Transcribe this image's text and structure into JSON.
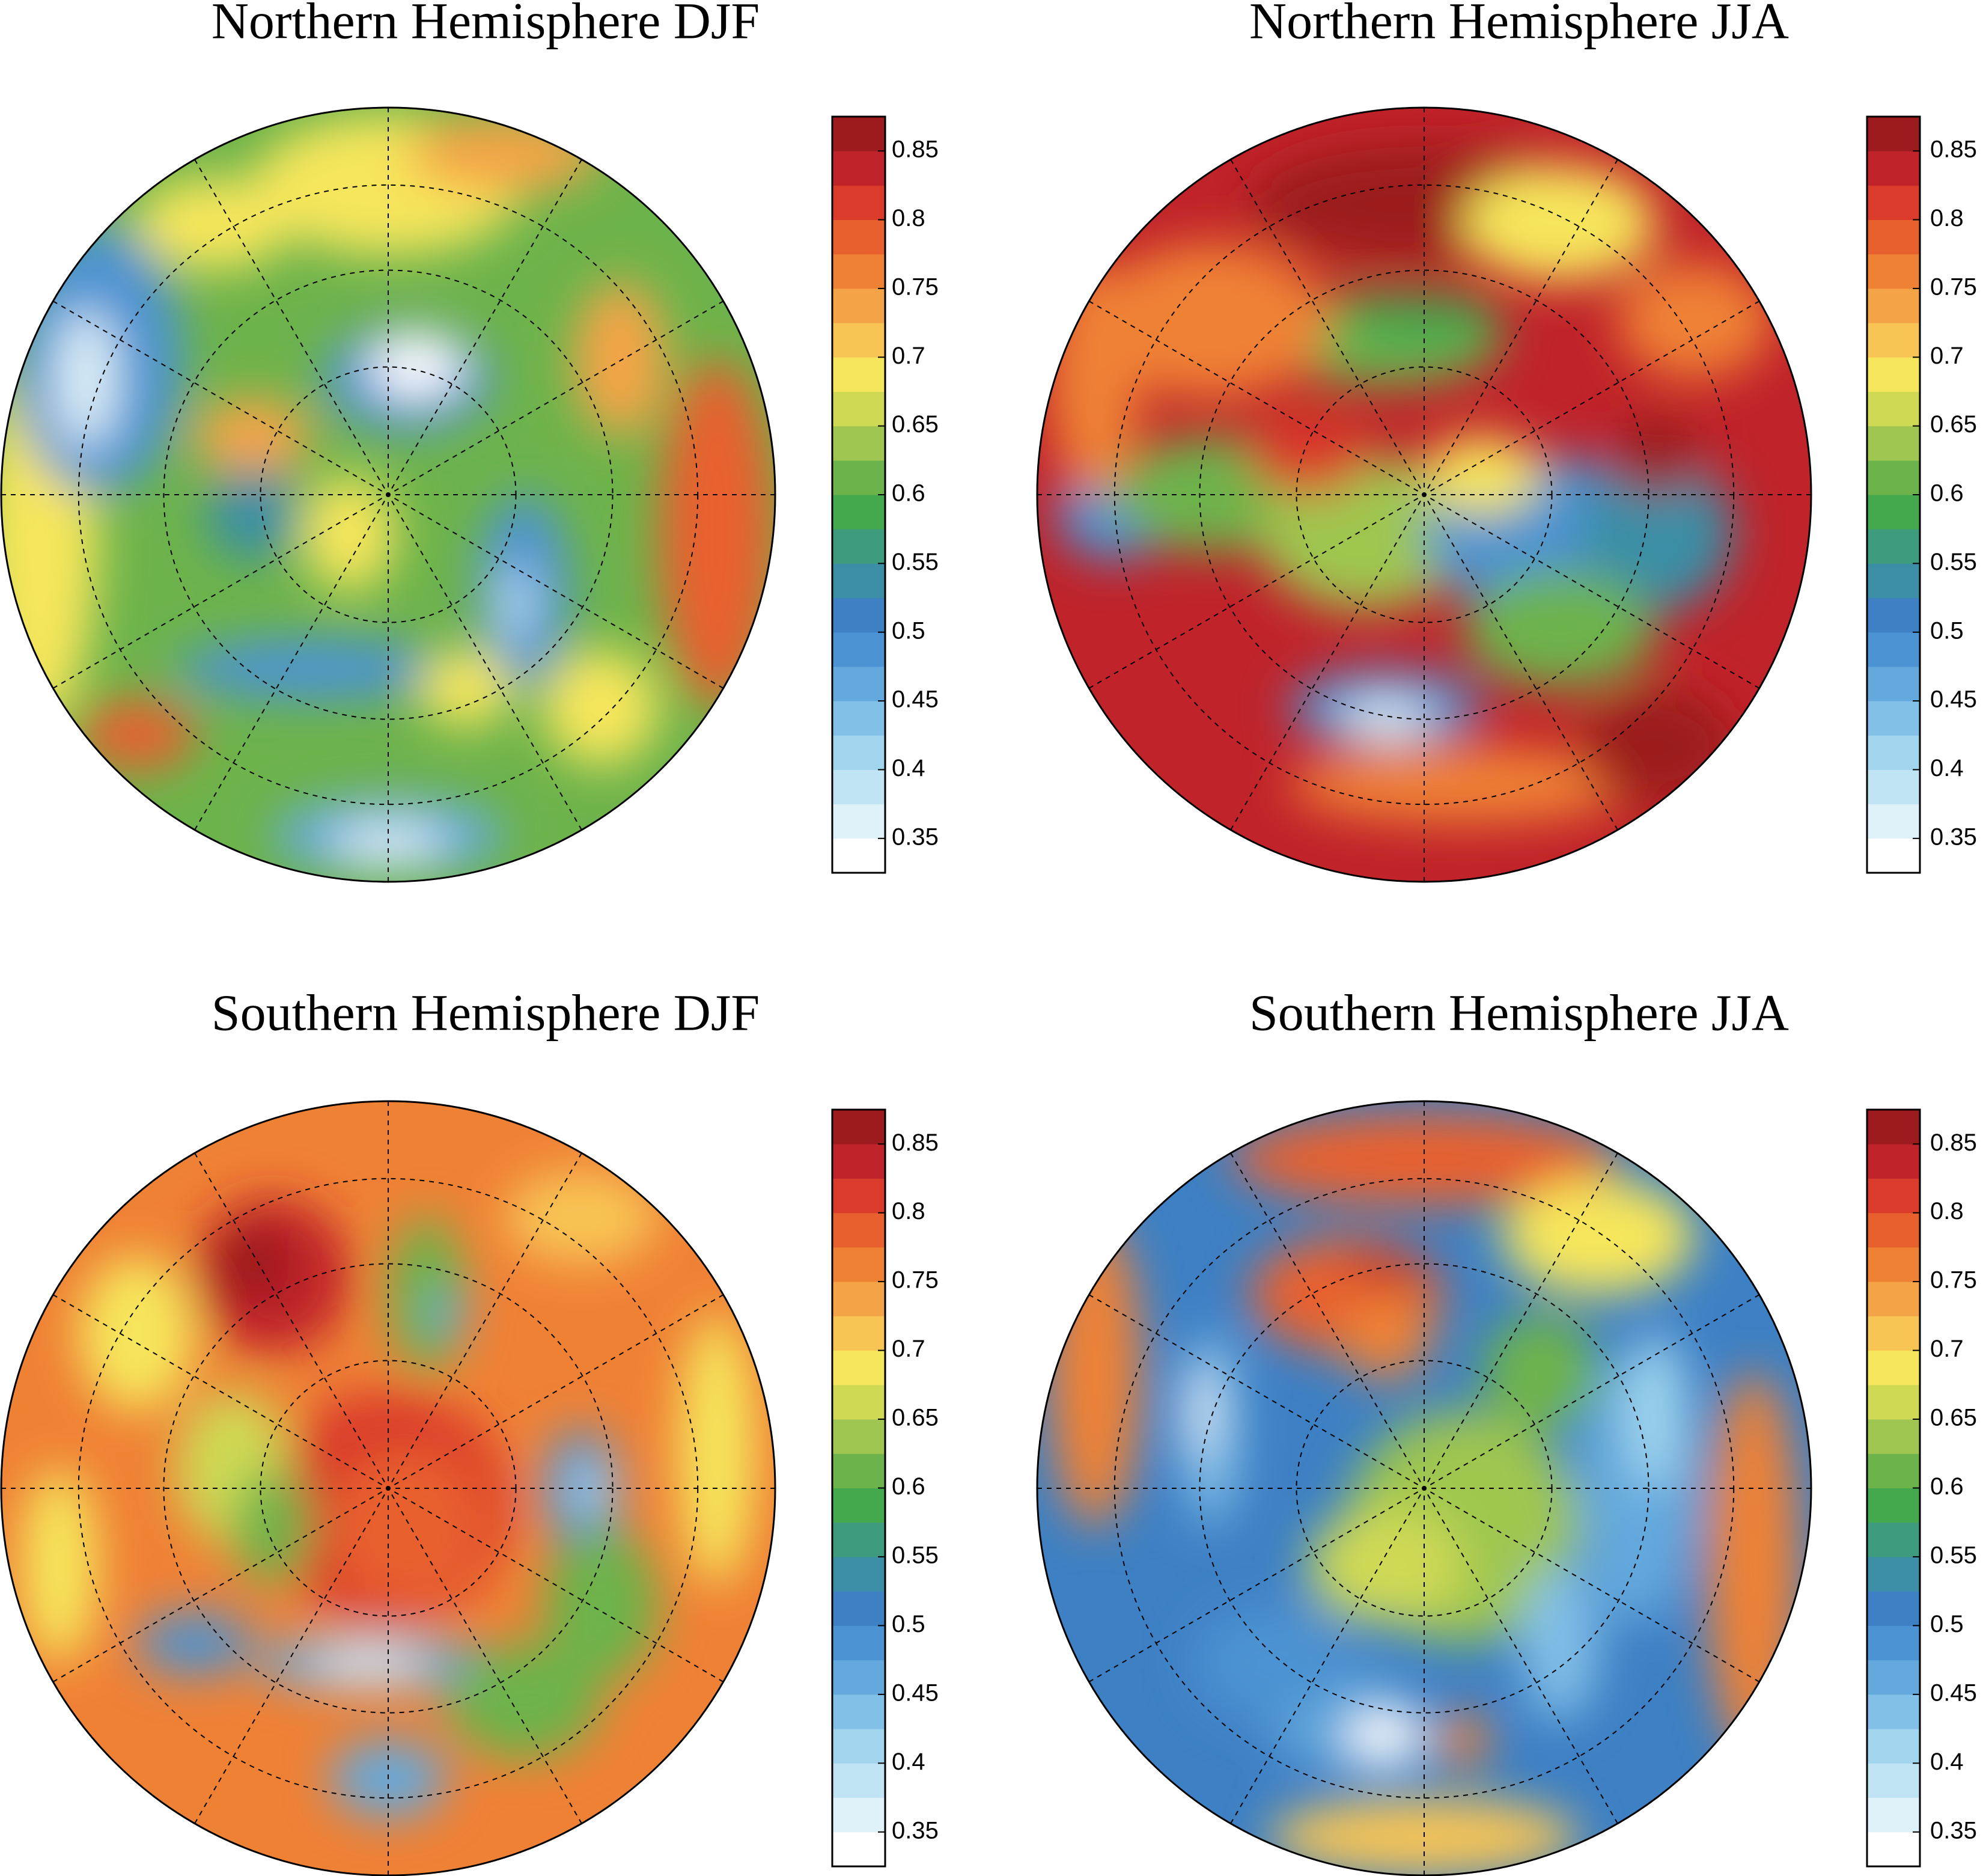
{
  "chart_data": [
    {
      "type": "polar-map",
      "title": "Northern Hemisphere DJF",
      "ylim": [
        0.325,
        0.875
      ],
      "yticks": [
        0.35,
        0.4,
        0.45,
        0.5,
        0.55,
        0.6,
        0.65,
        0.7,
        0.75,
        0.8,
        0.85
      ],
      "colors": [
        "#ffffff",
        "#dff1f9",
        "#c0e4f4",
        "#a1d5ee",
        "#82c0e8",
        "#64a9dd",
        "#4b93d2",
        "#3d80c4",
        "#3b8ea6",
        "#3f9b7d",
        "#44a84d",
        "#6db34b",
        "#9fc650",
        "#cfd954",
        "#f6e65c",
        "#f8c555",
        "#f4a447",
        "#ef8135",
        "#e8602d",
        "#da3b2a",
        "#c0232a",
        "#9b1b1f"
      ]
    },
    {
      "type": "polar-map",
      "title": "Northern Hemisphere JJA",
      "ylim": [
        0.325,
        0.875
      ],
      "yticks": [
        0.35,
        0.4,
        0.45,
        0.5,
        0.55,
        0.6,
        0.65,
        0.7,
        0.75,
        0.8,
        0.85
      ],
      "colors": [
        "#ffffff",
        "#dff1f9",
        "#c0e4f4",
        "#a1d5ee",
        "#82c0e8",
        "#64a9dd",
        "#4b93d2",
        "#3d80c4",
        "#3b8ea6",
        "#3f9b7d",
        "#44a84d",
        "#6db34b",
        "#9fc650",
        "#cfd954",
        "#f6e65c",
        "#f8c555",
        "#f4a447",
        "#ef8135",
        "#e8602d",
        "#da3b2a",
        "#c0232a",
        "#9b1b1f"
      ]
    },
    {
      "type": "polar-map",
      "title": "Southern Hemisphere DJF",
      "ylim": [
        0.325,
        0.875
      ],
      "yticks": [
        0.35,
        0.4,
        0.45,
        0.5,
        0.55,
        0.6,
        0.65,
        0.7,
        0.75,
        0.8,
        0.85
      ],
      "colors": [
        "#ffffff",
        "#dff1f9",
        "#c0e4f4",
        "#a1d5ee",
        "#82c0e8",
        "#64a9dd",
        "#4b93d2",
        "#3d80c4",
        "#3b8ea6",
        "#3f9b7d",
        "#44a84d",
        "#6db34b",
        "#9fc650",
        "#cfd954",
        "#f6e65c",
        "#f8c555",
        "#f4a447",
        "#ef8135",
        "#e8602d",
        "#da3b2a",
        "#c0232a",
        "#9b1b1f"
      ]
    },
    {
      "type": "polar-map",
      "title": "Southern Hemisphere JJA",
      "ylim": [
        0.325,
        0.875
      ],
      "yticks": [
        0.35,
        0.4,
        0.45,
        0.5,
        0.55,
        0.6,
        0.65,
        0.7,
        0.75,
        0.8,
        0.85
      ],
      "colors": [
        "#ffffff",
        "#dff1f9",
        "#c0e4f4",
        "#a1d5ee",
        "#82c0e8",
        "#64a9dd",
        "#4b93d2",
        "#3d80c4",
        "#3b8ea6",
        "#3f9b7d",
        "#44a84d",
        "#6db34b",
        "#9fc650",
        "#cfd954",
        "#f6e65c",
        "#f8c555",
        "#f4a447",
        "#ef8135",
        "#e8602d",
        "#da3b2a",
        "#c0232a",
        "#9b1b1f"
      ]
    }
  ]
}
